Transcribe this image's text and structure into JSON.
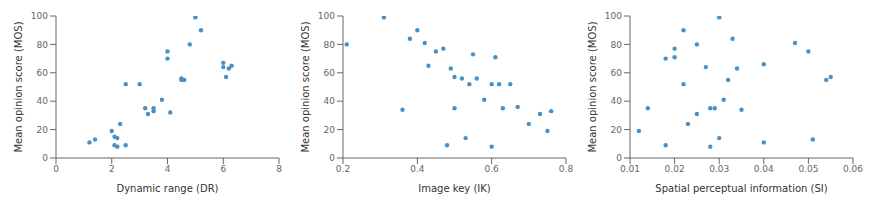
{
  "chart_data": [
    {
      "type": "scatter",
      "x": [
        1.2,
        1.4,
        2.0,
        2.1,
        2.1,
        2.2,
        2.2,
        2.3,
        2.5,
        2.5,
        3.0,
        3.2,
        3.3,
        3.5,
        3.5,
        3.8,
        4.0,
        4.0,
        4.1,
        4.5,
        4.5,
        4.6,
        4.8,
        5.0,
        5.2,
        6.0,
        6.0,
        6.1,
        6.2,
        6.3
      ],
      "values": [
        11,
        13,
        19,
        15,
        9,
        14,
        8,
        24,
        52,
        9,
        52,
        35,
        31,
        35,
        33,
        41,
        70,
        75,
        32,
        55,
        56,
        55,
        80,
        99,
        90,
        67,
        64,
        57,
        63,
        65
      ],
      "color": "#4a90c4",
      "xlabel": "Dynamic range (DR)",
      "ylabel": "Mean opinion score (MOS)",
      "xlim": [
        0,
        8
      ],
      "ylim": [
        0,
        100
      ],
      "xticks": [
        0,
        2,
        4,
        6,
        8
      ],
      "yticks": [
        0,
        20,
        40,
        60,
        80,
        100
      ],
      "grid": false
    },
    {
      "type": "scatter",
      "x": [
        0.21,
        0.31,
        0.36,
        0.38,
        0.4,
        0.42,
        0.43,
        0.45,
        0.47,
        0.48,
        0.49,
        0.5,
        0.5,
        0.52,
        0.53,
        0.54,
        0.55,
        0.56,
        0.58,
        0.6,
        0.6,
        0.61,
        0.62,
        0.63,
        0.65,
        0.67,
        0.7,
        0.73,
        0.75,
        0.76
      ],
      "values": [
        80,
        99,
        34,
        84,
        90,
        81,
        65,
        75,
        77,
        9,
        63,
        57,
        35,
        56,
        14,
        52,
        73,
        56,
        41,
        8,
        52,
        71,
        52,
        35,
        52,
        36,
        24,
        31,
        19,
        33
      ],
      "color": "#4a90c4",
      "xlabel": "Image key (IK)",
      "ylabel": "Mean opinion score (MOS)",
      "xlim": [
        0.2,
        0.8
      ],
      "ylim": [
        0,
        100
      ],
      "xticks": [
        0.2,
        0.4,
        0.6,
        0.8
      ],
      "yticks": [
        0,
        20,
        40,
        60,
        80,
        100
      ],
      "grid": false
    },
    {
      "type": "scatter",
      "x": [
        0.012,
        0.014,
        0.018,
        0.018,
        0.02,
        0.02,
        0.022,
        0.022,
        0.023,
        0.025,
        0.025,
        0.027,
        0.028,
        0.028,
        0.029,
        0.03,
        0.03,
        0.031,
        0.032,
        0.033,
        0.034,
        0.035,
        0.04,
        0.04,
        0.047,
        0.05,
        0.051,
        0.054,
        0.055
      ],
      "values": [
        19,
        35,
        70,
        9,
        71,
        77,
        90,
        52,
        24,
        31,
        80,
        64,
        35,
        8,
        35,
        99,
        14,
        41,
        55,
        84,
        63,
        34,
        11,
        66,
        81,
        75,
        13,
        55,
        57
      ],
      "color": "#4a90c4",
      "xlabel": "Spatial perceptual information (SI)",
      "ylabel": "Mean opinion score (MOS)",
      "xlim": [
        0.01,
        0.06
      ],
      "ylim": [
        0,
        100
      ],
      "xticks": [
        0.01,
        0.02,
        0.03,
        0.04,
        0.05,
        0.06
      ],
      "yticks": [
        0,
        20,
        40,
        60,
        80,
        100
      ],
      "grid": false
    }
  ]
}
